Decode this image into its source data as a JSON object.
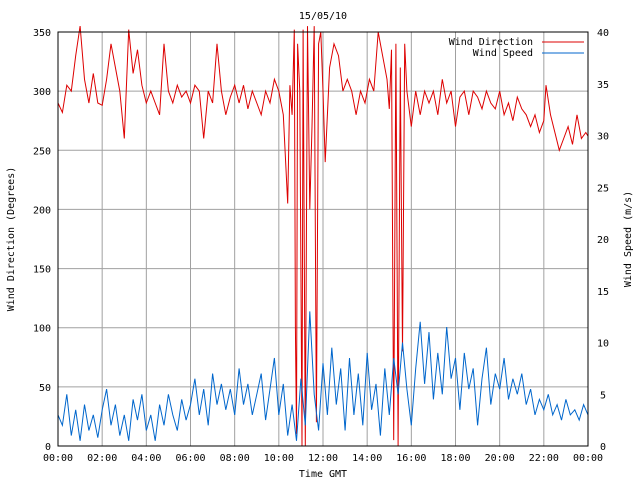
{
  "chart_data": {
    "type": "line",
    "title": "15/05/10",
    "xlabel": "Time GMT",
    "ylabel_left": "Wind Direction (Degrees)",
    "ylabel_right": "Wind Speed (m/s)",
    "x_ticks": [
      "00:00",
      "02:00",
      "04:00",
      "06:00",
      "08:00",
      "10:00",
      "12:00",
      "14:00",
      "16:00",
      "18:00",
      "20:00",
      "22:00",
      "00:00"
    ],
    "xlim_hours": [
      0,
      24
    ],
    "ylim_left": [
      0,
      350
    ],
    "y_ticks_left": [
      "0",
      "50",
      "100",
      "150",
      "200",
      "250",
      "300",
      "350"
    ],
    "ylim_right": [
      0,
      40
    ],
    "y_ticks_right": [
      "0",
      "5",
      "10",
      "15",
      "20",
      "25",
      "30",
      "35",
      "40"
    ],
    "grid": true,
    "legend_position": "top-right",
    "series": [
      {
        "name": "Wind Direction",
        "axis": "left",
        "color": "#dd0000",
        "points": [
          [
            0.0,
            290
          ],
          [
            0.2,
            282
          ],
          [
            0.4,
            305
          ],
          [
            0.6,
            300
          ],
          [
            0.8,
            330
          ],
          [
            1.0,
            355
          ],
          [
            1.2,
            310
          ],
          [
            1.4,
            290
          ],
          [
            1.6,
            315
          ],
          [
            1.8,
            290
          ],
          [
            2.0,
            288
          ],
          [
            2.2,
            310
          ],
          [
            2.4,
            340
          ],
          [
            2.6,
            320
          ],
          [
            2.8,
            300
          ],
          [
            3.0,
            260
          ],
          [
            3.2,
            352
          ],
          [
            3.4,
            315
          ],
          [
            3.6,
            335
          ],
          [
            3.8,
            305
          ],
          [
            4.0,
            290
          ],
          [
            4.2,
            300
          ],
          [
            4.4,
            290
          ],
          [
            4.6,
            280
          ],
          [
            4.8,
            340
          ],
          [
            5.0,
            300
          ],
          [
            5.2,
            290
          ],
          [
            5.4,
            305
          ],
          [
            5.6,
            295
          ],
          [
            5.8,
            300
          ],
          [
            6.0,
            290
          ],
          [
            6.2,
            305
          ],
          [
            6.4,
            300
          ],
          [
            6.6,
            260
          ],
          [
            6.8,
            300
          ],
          [
            7.0,
            290
          ],
          [
            7.2,
            340
          ],
          [
            7.4,
            300
          ],
          [
            7.6,
            280
          ],
          [
            7.8,
            295
          ],
          [
            8.0,
            305
          ],
          [
            8.2,
            290
          ],
          [
            8.4,
            305
          ],
          [
            8.6,
            285
          ],
          [
            8.8,
            300
          ],
          [
            9.0,
            290
          ],
          [
            9.2,
            280
          ],
          [
            9.4,
            300
          ],
          [
            9.6,
            290
          ],
          [
            9.8,
            310
          ],
          [
            10.0,
            300
          ],
          [
            10.2,
            280
          ],
          [
            10.4,
            205
          ],
          [
            10.5,
            305
          ],
          [
            10.6,
            280
          ],
          [
            10.7,
            352
          ],
          [
            10.75,
            100
          ],
          [
            10.8,
            10
          ],
          [
            10.85,
            340
          ],
          [
            10.95,
            300
          ],
          [
            11.05,
            0
          ],
          [
            11.1,
            352
          ],
          [
            11.2,
            0
          ],
          [
            11.3,
            355
          ],
          [
            11.4,
            200
          ],
          [
            11.5,
            270
          ],
          [
            11.6,
            355
          ],
          [
            11.7,
            20
          ],
          [
            11.8,
            340
          ],
          [
            11.9,
            350
          ],
          [
            12.0,
            300
          ],
          [
            12.1,
            240
          ],
          [
            12.3,
            320
          ],
          [
            12.5,
            340
          ],
          [
            12.7,
            330
          ],
          [
            12.9,
            300
          ],
          [
            13.1,
            310
          ],
          [
            13.3,
            300
          ],
          [
            13.5,
            280
          ],
          [
            13.7,
            300
          ],
          [
            13.9,
            290
          ],
          [
            14.1,
            310
          ],
          [
            14.3,
            300
          ],
          [
            14.5,
            350
          ],
          [
            14.7,
            330
          ],
          [
            14.9,
            310
          ],
          [
            15.0,
            285
          ],
          [
            15.1,
            335
          ],
          [
            15.2,
            5
          ],
          [
            15.3,
            340
          ],
          [
            15.4,
            0
          ],
          [
            15.5,
            320
          ],
          [
            15.6,
            80
          ],
          [
            15.7,
            340
          ],
          [
            15.8,
            300
          ],
          [
            16.0,
            270
          ],
          [
            16.2,
            300
          ],
          [
            16.4,
            280
          ],
          [
            16.6,
            300
          ],
          [
            16.8,
            290
          ],
          [
            17.0,
            300
          ],
          [
            17.2,
            280
          ],
          [
            17.4,
            310
          ],
          [
            17.6,
            290
          ],
          [
            17.8,
            300
          ],
          [
            18.0,
            270
          ],
          [
            18.2,
            295
          ],
          [
            18.4,
            300
          ],
          [
            18.6,
            280
          ],
          [
            18.8,
            300
          ],
          [
            19.0,
            295
          ],
          [
            19.2,
            285
          ],
          [
            19.4,
            300
          ],
          [
            19.6,
            290
          ],
          [
            19.8,
            285
          ],
          [
            20.0,
            300
          ],
          [
            20.2,
            280
          ],
          [
            20.4,
            290
          ],
          [
            20.6,
            275
          ],
          [
            20.8,
            295
          ],
          [
            21.0,
            285
          ],
          [
            21.2,
            280
          ],
          [
            21.4,
            270
          ],
          [
            21.6,
            280
          ],
          [
            21.8,
            265
          ],
          [
            22.0,
            275
          ],
          [
            22.1,
            305
          ],
          [
            22.3,
            280
          ],
          [
            22.5,
            265
          ],
          [
            22.7,
            250
          ],
          [
            22.9,
            260
          ],
          [
            23.1,
            270
          ],
          [
            23.3,
            255
          ],
          [
            23.5,
            280
          ],
          [
            23.7,
            260
          ],
          [
            23.9,
            265
          ],
          [
            24.0,
            262
          ]
        ]
      },
      {
        "name": "Wind Speed",
        "axis": "right",
        "color": "#0066cc",
        "points": [
          [
            0.0,
            3.0
          ],
          [
            0.2,
            2.0
          ],
          [
            0.4,
            5.0
          ],
          [
            0.6,
            1.0
          ],
          [
            0.8,
            3.5
          ],
          [
            1.0,
            0.5
          ],
          [
            1.2,
            4.0
          ],
          [
            1.4,
            1.5
          ],
          [
            1.6,
            3.0
          ],
          [
            1.8,
            0.8
          ],
          [
            2.0,
            3.5
          ],
          [
            2.2,
            5.5
          ],
          [
            2.4,
            2.0
          ],
          [
            2.6,
            4.0
          ],
          [
            2.8,
            1.0
          ],
          [
            3.0,
            3.0
          ],
          [
            3.2,
            0.5
          ],
          [
            3.4,
            4.5
          ],
          [
            3.6,
            2.5
          ],
          [
            3.8,
            5.0
          ],
          [
            4.0,
            1.5
          ],
          [
            4.2,
            3.0
          ],
          [
            4.4,
            0.5
          ],
          [
            4.6,
            4.0
          ],
          [
            4.8,
            2.0
          ],
          [
            5.0,
            5.0
          ],
          [
            5.2,
            3.0
          ],
          [
            5.4,
            1.5
          ],
          [
            5.6,
            4.5
          ],
          [
            5.8,
            2.5
          ],
          [
            6.0,
            4.0
          ],
          [
            6.2,
            6.5
          ],
          [
            6.4,
            3.0
          ],
          [
            6.6,
            5.5
          ],
          [
            6.8,
            2.0
          ],
          [
            7.0,
            7.0
          ],
          [
            7.2,
            4.0
          ],
          [
            7.4,
            6.0
          ],
          [
            7.6,
            3.5
          ],
          [
            7.8,
            5.5
          ],
          [
            8.0,
            3.0
          ],
          [
            8.2,
            7.5
          ],
          [
            8.4,
            4.0
          ],
          [
            8.6,
            6.0
          ],
          [
            8.8,
            3.0
          ],
          [
            9.0,
            5.0
          ],
          [
            9.2,
            7.0
          ],
          [
            9.4,
            2.5
          ],
          [
            9.6,
            5.5
          ],
          [
            9.8,
            8.5
          ],
          [
            10.0,
            3.0
          ],
          [
            10.2,
            6.0
          ],
          [
            10.4,
            1.0
          ],
          [
            10.6,
            4.0
          ],
          [
            10.8,
            0.5
          ],
          [
            11.0,
            6.5
          ],
          [
            11.2,
            2.0
          ],
          [
            11.4,
            13.0
          ],
          [
            11.6,
            5.0
          ],
          [
            11.8,
            1.5
          ],
          [
            12.0,
            8.0
          ],
          [
            12.2,
            3.0
          ],
          [
            12.4,
            9.5
          ],
          [
            12.6,
            4.0
          ],
          [
            12.8,
            7.5
          ],
          [
            13.0,
            1.5
          ],
          [
            13.2,
            8.5
          ],
          [
            13.4,
            3.0
          ],
          [
            13.6,
            7.0
          ],
          [
            13.8,
            2.0
          ],
          [
            14.0,
            9.0
          ],
          [
            14.2,
            3.5
          ],
          [
            14.4,
            6.0
          ],
          [
            14.6,
            1.0
          ],
          [
            14.8,
            7.5
          ],
          [
            15.0,
            3.0
          ],
          [
            15.2,
            8.5
          ],
          [
            15.4,
            5.0
          ],
          [
            15.6,
            10.0
          ],
          [
            15.8,
            5.5
          ],
          [
            16.0,
            2.0
          ],
          [
            16.2,
            7.5
          ],
          [
            16.4,
            12.0
          ],
          [
            16.6,
            6.0
          ],
          [
            16.8,
            11.0
          ],
          [
            17.0,
            4.5
          ],
          [
            17.2,
            9.0
          ],
          [
            17.4,
            5.0
          ],
          [
            17.6,
            11.5
          ],
          [
            17.8,
            6.5
          ],
          [
            18.0,
            8.5
          ],
          [
            18.2,
            3.5
          ],
          [
            18.4,
            9.0
          ],
          [
            18.6,
            5.5
          ],
          [
            18.8,
            7.5
          ],
          [
            19.0,
            2.0
          ],
          [
            19.2,
            6.5
          ],
          [
            19.4,
            9.5
          ],
          [
            19.6,
            4.0
          ],
          [
            19.8,
            7.0
          ],
          [
            20.0,
            5.5
          ],
          [
            20.2,
            8.5
          ],
          [
            20.4,
            4.5
          ],
          [
            20.6,
            6.5
          ],
          [
            20.8,
            5.0
          ],
          [
            21.0,
            7.0
          ],
          [
            21.2,
            4.0
          ],
          [
            21.4,
            5.5
          ],
          [
            21.6,
            3.0
          ],
          [
            21.8,
            4.5
          ],
          [
            22.0,
            3.5
          ],
          [
            22.2,
            5.0
          ],
          [
            22.4,
            3.0
          ],
          [
            22.6,
            4.0
          ],
          [
            22.8,
            2.5
          ],
          [
            23.0,
            4.5
          ],
          [
            23.2,
            3.0
          ],
          [
            23.4,
            3.5
          ],
          [
            23.6,
            2.5
          ],
          [
            23.8,
            4.0
          ],
          [
            24.0,
            3.0
          ]
        ]
      }
    ]
  }
}
